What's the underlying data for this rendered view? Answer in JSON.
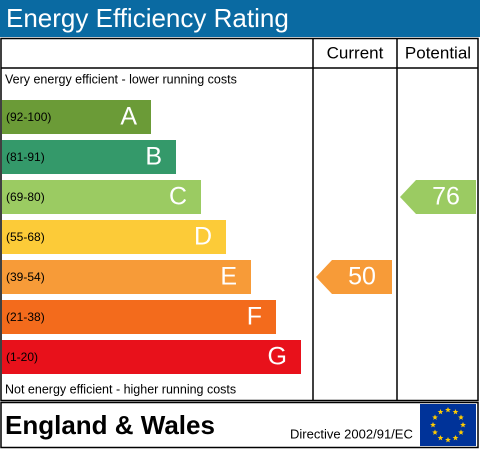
{
  "header": {
    "title": "Energy Efficiency Rating"
  },
  "columns": [
    "Current",
    "Potential"
  ],
  "top_note": "Very energy efficient - lower running costs",
  "bottom_note": "Not energy efficient - higher running costs",
  "bands": [
    {
      "range": "(92-100)",
      "letter": "A",
      "color": "#6b9b37"
    },
    {
      "range": "(81-91)",
      "letter": "B",
      "color": "#34996a"
    },
    {
      "range": "(69-80)",
      "letter": "C",
      "color": "#9bcb62"
    },
    {
      "range": "(55-68)",
      "letter": "D",
      "color": "#fccb38"
    },
    {
      "range": "(39-54)",
      "letter": "E",
      "color": "#f79b38"
    },
    {
      "range": "(21-38)",
      "letter": "F",
      "color": "#f36b1c"
    },
    {
      "range": "(1-20)",
      "letter": "G",
      "color": "#e8111b"
    }
  ],
  "ratings": {
    "current": 50,
    "potential": 76
  },
  "footer": {
    "region": "England & Wales",
    "directive": "Directive 2002/91/EC"
  }
}
